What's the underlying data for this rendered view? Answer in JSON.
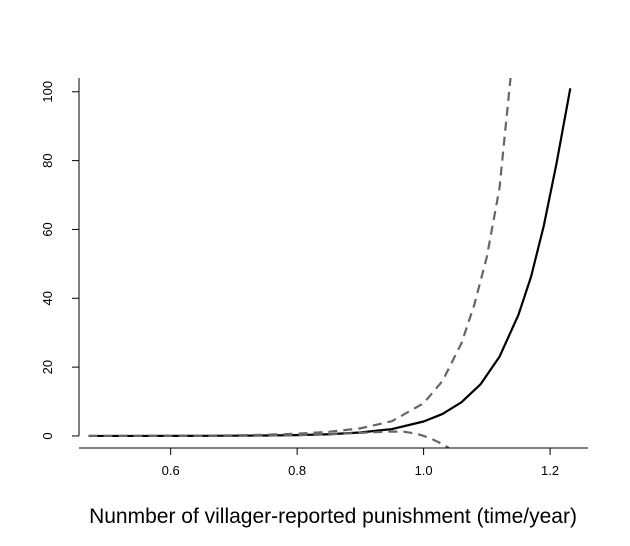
{
  "chart_data": {
    "type": "line",
    "title": "",
    "xlabel": "Nunmber of villager-reported punishment (time/year)",
    "ylabel": "",
    "xlim": [
      0.455,
      1.26
    ],
    "ylim": [
      -3.5,
      104
    ],
    "x_ticks": [
      0.6,
      0.8,
      1.0,
      1.2
    ],
    "x_tick_labels": [
      "0.6",
      "0.8",
      "1.0",
      "1.2"
    ],
    "y_ticks": [
      0,
      20,
      40,
      60,
      80,
      100
    ],
    "y_tick_labels": [
      "0",
      "20",
      "40",
      "60",
      "80",
      "100"
    ],
    "grid": false,
    "legend": "none",
    "series": [
      {
        "style": "solid",
        "color": "#000000",
        "x": [
          0.47,
          0.55,
          0.6,
          0.65,
          0.7,
          0.75,
          0.8,
          0.85,
          0.9,
          0.95,
          1.0,
          1.03,
          1.06,
          1.09,
          1.12,
          1.15,
          1.17,
          1.19,
          1.21,
          1.232
        ],
        "y": [
          0.0,
          0.01,
          0.02,
          0.04,
          0.07,
          0.13,
          0.25,
          0.5,
          1.0,
          2.0,
          4.2,
          6.4,
          9.8,
          15.0,
          23.0,
          35.2,
          46.3,
          61.0,
          79.0,
          101.0
        ]
      },
      {
        "style": "dashed",
        "color": "#666666",
        "x": [
          0.47,
          0.55,
          0.6,
          0.65,
          0.7,
          0.75,
          0.8,
          0.85,
          0.9,
          0.95,
          1.0,
          1.03,
          1.06,
          1.08,
          1.1,
          1.12,
          1.138
        ],
        "y": [
          0.0,
          0.02,
          0.05,
          0.1,
          0.18,
          0.35,
          0.65,
          1.2,
          2.2,
          4.3,
          9.5,
          16.0,
          27.0,
          38.0,
          52.0,
          72.0,
          105.0
        ]
      },
      {
        "style": "dashed",
        "color": "#666666",
        "x": [
          0.47,
          0.55,
          0.6,
          0.65,
          0.7,
          0.75,
          0.8,
          0.85,
          0.9,
          0.95,
          0.97,
          0.99,
          1.01,
          1.03,
          1.04
        ],
        "y": [
          0.0,
          0.01,
          0.02,
          0.04,
          0.07,
          0.13,
          0.25,
          0.5,
          0.9,
          1.3,
          1.2,
          0.6,
          -0.6,
          -2.4,
          -3.5
        ]
      }
    ]
  }
}
